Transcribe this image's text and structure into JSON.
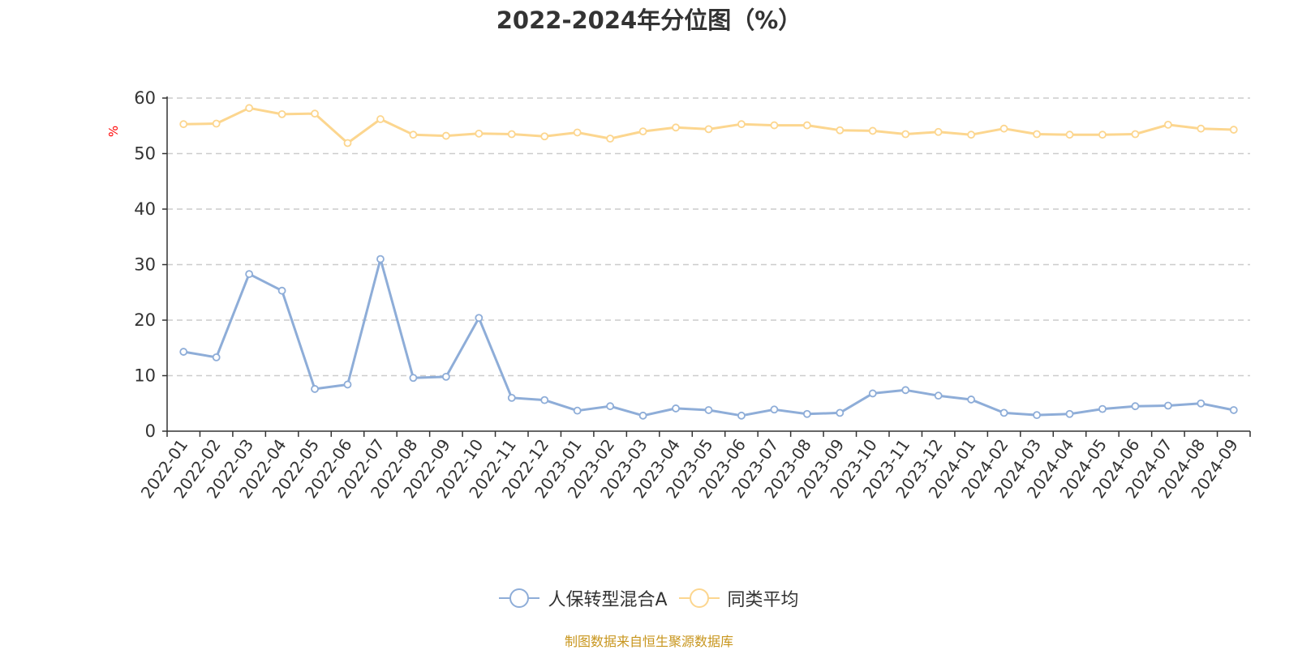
{
  "chart_data": {
    "type": "line",
    "title": "2022-2024年分位图（%）",
    "ylabel": "%",
    "ylim": [
      0,
      60
    ],
    "yticks": [
      0,
      10,
      20,
      30,
      40,
      50,
      60
    ],
    "grid": true,
    "legend_position": "bottom",
    "categories": [
      "2022-01",
      "2022-02",
      "2022-03",
      "2022-04",
      "2022-05",
      "2022-06",
      "2022-07",
      "2022-08",
      "2022-09",
      "2022-10",
      "2022-11",
      "2022-12",
      "2023-01",
      "2023-02",
      "2023-03",
      "2023-04",
      "2023-05",
      "2023-06",
      "2023-07",
      "2023-08",
      "2023-09",
      "2023-10",
      "2023-11",
      "2023-12",
      "2024-01",
      "2024-02",
      "2024-03",
      "2024-04",
      "2024-05",
      "2024-06",
      "2024-07",
      "2024-08",
      "2024-09"
    ],
    "series": [
      {
        "name": "人保转型混合A",
        "color": "#8eadd8",
        "values": [
          14.3,
          13.3,
          28.3,
          25.3,
          7.6,
          8.4,
          31.0,
          9.6,
          9.8,
          20.4,
          6.0,
          5.6,
          3.7,
          4.5,
          2.8,
          4.1,
          3.8,
          2.8,
          3.9,
          3.1,
          3.3,
          6.8,
          7.4,
          6.4,
          5.7,
          3.3,
          2.9,
          3.1,
          4.0,
          4.5,
          4.6,
          5.0,
          3.8
        ]
      },
      {
        "name": "同类平均",
        "color": "#fcd68f",
        "values": [
          55.3,
          55.4,
          58.2,
          57.1,
          57.2,
          51.9,
          56.2,
          53.4,
          53.2,
          53.6,
          53.5,
          53.1,
          53.8,
          52.7,
          54.0,
          54.7,
          54.4,
          55.3,
          55.1,
          55.1,
          54.2,
          54.1,
          53.5,
          53.9,
          53.4,
          54.5,
          53.5,
          53.4,
          53.4,
          53.5,
          55.2,
          54.5,
          54.3
        ]
      }
    ]
  },
  "source_note": "制图数据来自恒生聚源数据库"
}
